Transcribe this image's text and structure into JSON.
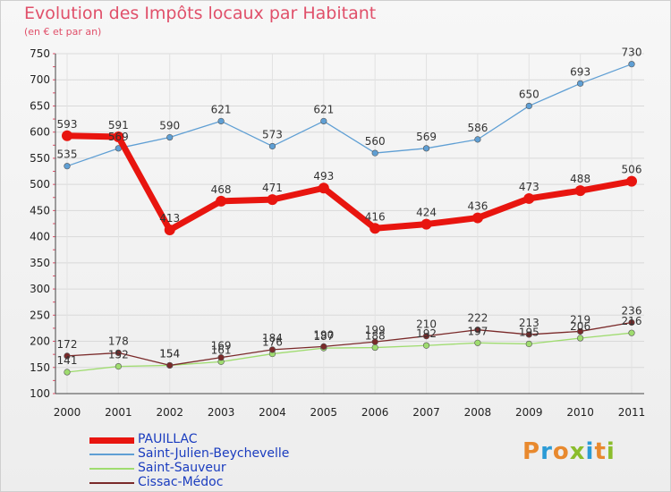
{
  "title": "Evolution des Impôts locaux par Habitant",
  "subtitle": "(en € et par an)",
  "logo": {
    "text": "Proxiti",
    "colors": [
      "#e8892e",
      "#2b9bd6",
      "#e8892e",
      "#8bbd2c",
      "#2b9bd6",
      "#e8892e",
      "#8bbd2c"
    ]
  },
  "chart_data": {
    "type": "line",
    "x": [
      "2000",
      "2001",
      "2002",
      "2003",
      "2004",
      "2005",
      "2006",
      "2007",
      "2008",
      "2009",
      "2010",
      "2011"
    ],
    "ylim": [
      100,
      750
    ],
    "yticks": [
      100,
      150,
      200,
      250,
      300,
      350,
      400,
      450,
      500,
      550,
      600,
      650,
      700,
      750
    ],
    "grid": true,
    "legend_position": "bottom-left",
    "series": [
      {
        "name": "PAUILLAC",
        "color": "#e8150f",
        "values": [
          593,
          591,
          413,
          468,
          471,
          493,
          416,
          424,
          436,
          473,
          488,
          506
        ]
      },
      {
        "name": "Saint-Julien-Beychevelle",
        "color": "#5f9fd4",
        "values": [
          535,
          569,
          590,
          621,
          573,
          621,
          560,
          569,
          586,
          650,
          693,
          730
        ]
      },
      {
        "name": "Saint-Sauveur",
        "color": "#9fdc6f",
        "values": [
          141,
          152,
          154,
          161,
          176,
          187,
          188,
          192,
          197,
          195,
          206,
          216
        ]
      },
      {
        "name": "Cissac-Médoc",
        "color": "#7a2a2a",
        "values": [
          172,
          178,
          154,
          169,
          184,
          190,
          199,
          210,
          222,
          213,
          219,
          236
        ]
      }
    ]
  }
}
